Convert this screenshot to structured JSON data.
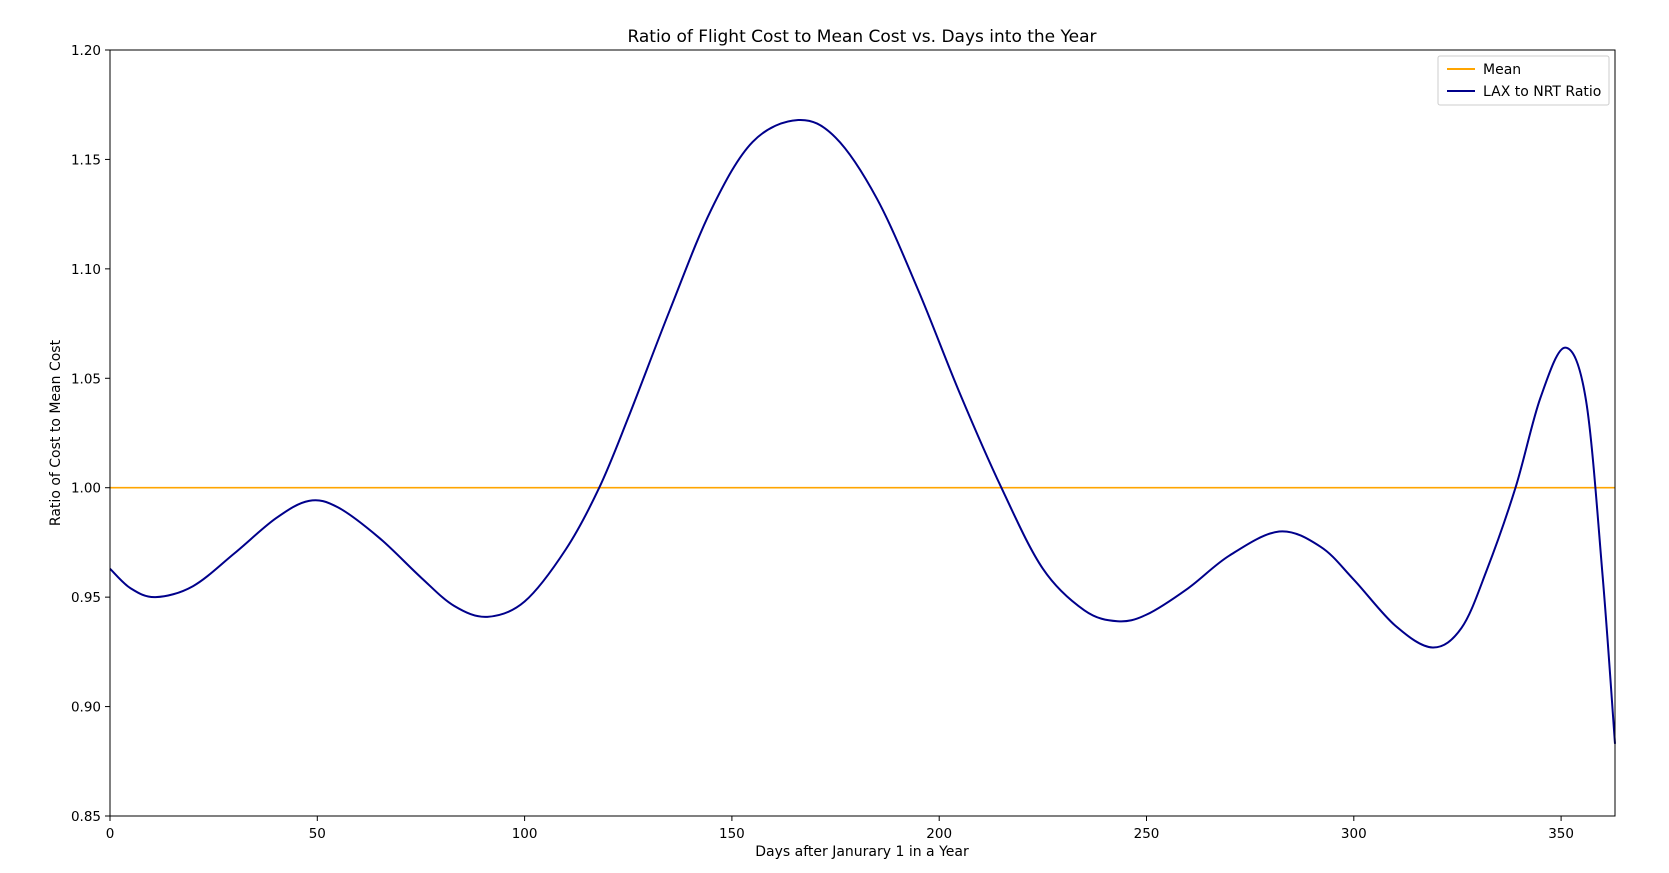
{
  "chart_data": {
    "type": "line",
    "title": "Ratio of Flight Cost to Mean Cost vs. Days into the Year",
    "xlabel": "Days after Janurary 1 in a Year",
    "ylabel": "Ratio of Cost to Mean Cost",
    "xlim": [
      0,
      363
    ],
    "ylim": [
      0.85,
      1.2
    ],
    "x_ticks": [
      0,
      50,
      100,
      150,
      200,
      250,
      300,
      350
    ],
    "x_tick_labels": [
      "0",
      "50",
      "100",
      "150",
      "200",
      "250",
      "300",
      "350"
    ],
    "y_ticks": [
      0.85,
      0.9,
      0.95,
      1.0,
      1.05,
      1.1,
      1.15,
      1.2
    ],
    "y_tick_labels": [
      "0.85",
      "0.90",
      "0.95",
      "1.00",
      "1.05",
      "1.10",
      "1.15",
      "1.20"
    ],
    "grid": false,
    "legend_position": "top-right",
    "series": [
      {
        "name": "Mean",
        "color": "#FFA500",
        "x": [
          0,
          363
        ],
        "y": [
          1.0,
          1.0
        ]
      },
      {
        "name": "LAX to NRT Ratio",
        "color": "#00008B",
        "x": [
          0,
          5,
          11,
          20,
          30,
          40,
          48,
          55,
          65,
          75,
          83,
          91,
          100,
          110,
          118,
          125,
          135,
          145,
          155,
          166,
          175,
          185,
          195,
          205,
          215,
          225,
          235,
          243,
          250,
          260,
          270,
          282,
          292,
          300,
          310,
          319,
          326,
          332,
          339,
          345,
          351,
          356,
          360,
          363
        ],
        "y": [
          0.963,
          0.954,
          0.95,
          0.955,
          0.97,
          0.986,
          0.994,
          0.991,
          0.977,
          0.959,
          0.946,
          0.941,
          0.948,
          0.972,
          1.0,
          1.032,
          1.081,
          1.127,
          1.158,
          1.168,
          1.16,
          1.132,
          1.09,
          1.043,
          1.0,
          0.963,
          0.944,
          0.939,
          0.942,
          0.954,
          0.969,
          0.98,
          0.973,
          0.958,
          0.937,
          0.927,
          0.936,
          0.962,
          1.0,
          1.041,
          1.064,
          1.04,
          0.96,
          0.883
        ]
      }
    ]
  }
}
